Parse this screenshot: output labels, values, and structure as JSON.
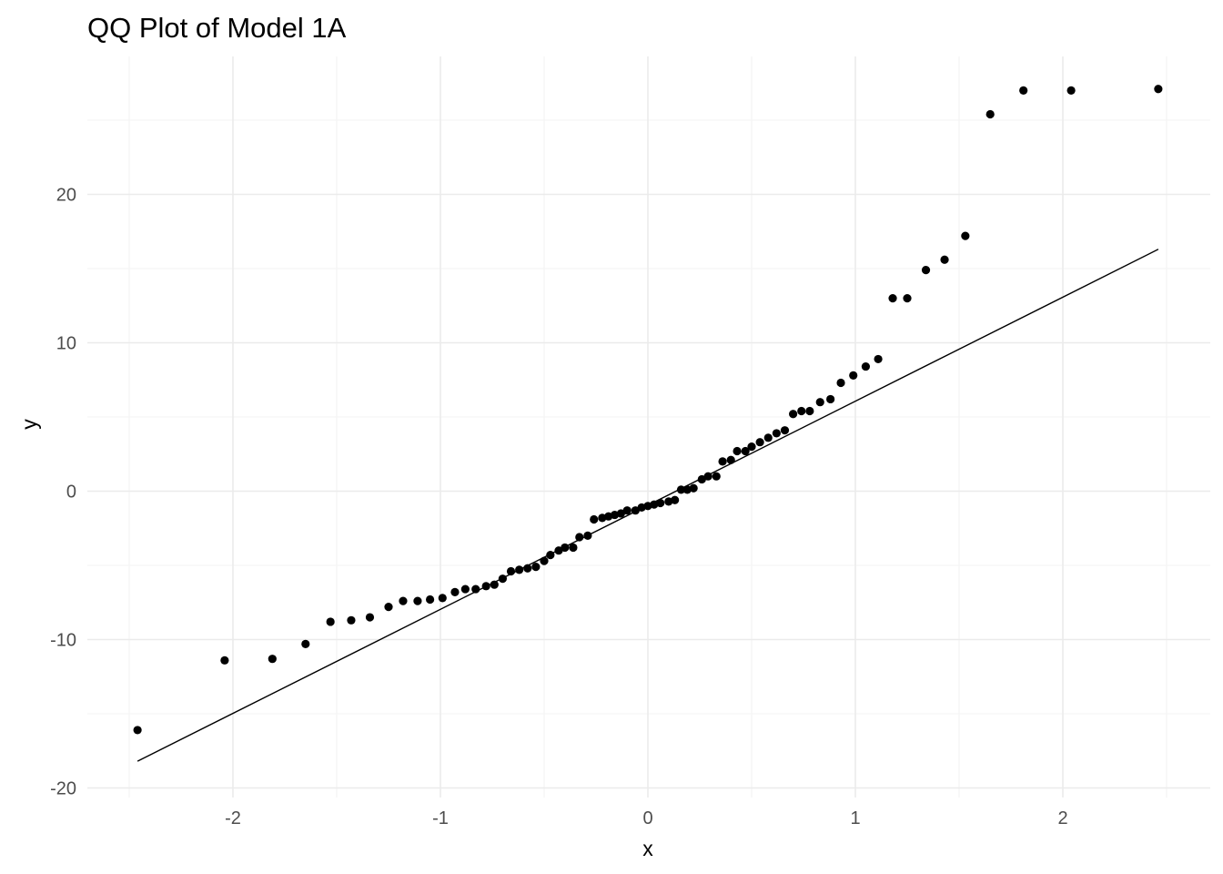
{
  "chart_data": {
    "type": "scatter",
    "title": "QQ Plot of Model 1A",
    "xlabel": "x",
    "ylabel": "y",
    "xlim": [
      -2.5,
      2.5
    ],
    "ylim": [
      -20.5,
      29
    ],
    "x_ticks": [
      -2,
      -1,
      0,
      1,
      2
    ],
    "y_ticks": [
      -20,
      -10,
      0,
      10,
      20
    ],
    "x_tick_labels": [
      "-2",
      "-1",
      "0",
      "1",
      "2"
    ],
    "y_tick_labels": [
      "-20",
      "-10",
      "0",
      "10",
      "20"
    ],
    "grid": true,
    "point_color": "#000000",
    "line_color": "#000000",
    "reference_line": {
      "x": [
        -2.46,
        2.46
      ],
      "y": [
        -18.2,
        16.3
      ]
    },
    "series": [
      {
        "x": [
          -2.46,
          -2.04,
          -1.81,
          -1.65,
          -1.53,
          -1.43,
          -1.34,
          -1.25,
          -1.18,
          -1.11,
          -1.05,
          -0.99,
          -0.93,
          -0.88,
          -0.83,
          -0.78,
          -0.74,
          -0.7,
          -0.66,
          -0.62,
          -0.58,
          -0.54,
          -0.5,
          -0.47,
          -0.43,
          -0.4,
          -0.36,
          -0.33,
          -0.29,
          -0.26,
          -0.22,
          -0.19,
          -0.16,
          -0.13,
          -0.1,
          -0.06,
          -0.03,
          0.0,
          0.03,
          0.06,
          0.1,
          0.13,
          0.16,
          0.19,
          0.22,
          0.26,
          0.29,
          0.33,
          0.36,
          0.4,
          0.43,
          0.47,
          0.5,
          0.54,
          0.58,
          0.62,
          0.66,
          0.7,
          0.74,
          0.78,
          0.83,
          0.88,
          0.93,
          0.99,
          1.05,
          1.11,
          1.18,
          1.25,
          1.34,
          1.43,
          1.53,
          1.65,
          1.81,
          2.04,
          2.46
        ],
        "y": [
          -16.1,
          -11.4,
          -11.3,
          -10.3,
          -8.8,
          -8.7,
          -8.5,
          -7.8,
          -7.4,
          -7.4,
          -7.3,
          -7.2,
          -6.8,
          -6.6,
          -6.6,
          -6.4,
          -6.3,
          -5.9,
          -5.4,
          -5.3,
          -5.2,
          -5.1,
          -4.7,
          -4.3,
          -4.0,
          -3.8,
          -3.8,
          -3.1,
          -3.0,
          -1.9,
          -1.8,
          -1.7,
          -1.6,
          -1.5,
          -1.3,
          -1.3,
          -1.1,
          -1.0,
          -0.9,
          -0.8,
          -0.7,
          -0.6,
          0.1,
          0.1,
          0.2,
          0.8,
          1.0,
          1.0,
          2.0,
          2.1,
          2.7,
          2.7,
          3.0,
          3.3,
          3.6,
          3.9,
          4.1,
          5.2,
          5.4,
          5.4,
          6.0,
          6.2,
          7.3,
          7.8,
          8.4,
          8.9,
          13.0,
          13.0,
          14.9,
          15.6,
          17.2,
          25.4,
          27.0,
          27.0,
          27.1
        ]
      }
    ]
  }
}
